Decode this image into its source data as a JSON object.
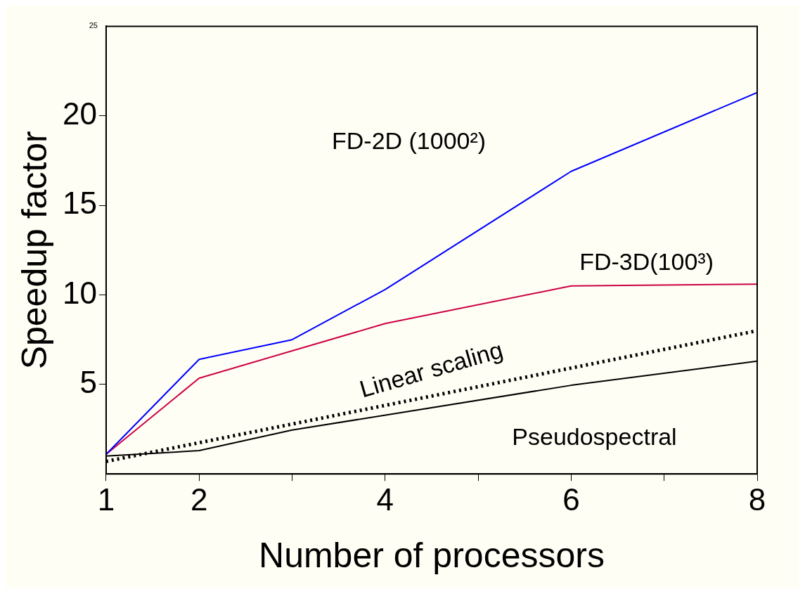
{
  "chart_data": {
    "type": "line",
    "xlabel": "Number of processors",
    "ylabel": "Speedup factor",
    "xlim": [
      1,
      8
    ],
    "ylim": [
      0,
      25
    ],
    "xticks": [
      1,
      2,
      {
        "value": 3,
        "label": null
      },
      4,
      {
        "value": 5,
        "label": null
      },
      6,
      {
        "value": 7,
        "label": null
      },
      8
    ],
    "yticks": [
      5,
      10,
      15,
      20
    ],
    "grid": false,
    "legend": false,
    "marker": "none",
    "series": [
      {
        "name": "FD-2D (1000²)",
        "color": "#0000ff",
        "line_style": "solid",
        "x": [
          1,
          2,
          3,
          4,
          6,
          8
        ],
        "values": [
          1.1,
          6.4,
          7.5,
          10.3,
          16.9,
          21.3
        ]
      },
      {
        "name": "FD-3D(100³)",
        "color": "#cc0044",
        "line_style": "solid",
        "x": [
          1,
          2,
          4,
          6,
          8
        ],
        "values": [
          1.1,
          5.35,
          8.4,
          10.5,
          10.6
        ]
      },
      {
        "name": "Linear scaling",
        "color": "#000000",
        "line_style": "dotted",
        "x": [
          1,
          8
        ],
        "values": [
          0.7,
          8.0
        ]
      },
      {
        "name": "Pseudospectral",
        "color": "#000000",
        "line_style": "solid",
        "x": [
          1,
          2,
          3,
          6,
          8
        ],
        "values": [
          1.0,
          1.3,
          2.45,
          4.95,
          6.3
        ]
      }
    ],
    "annotations": [
      "25"
    ]
  }
}
